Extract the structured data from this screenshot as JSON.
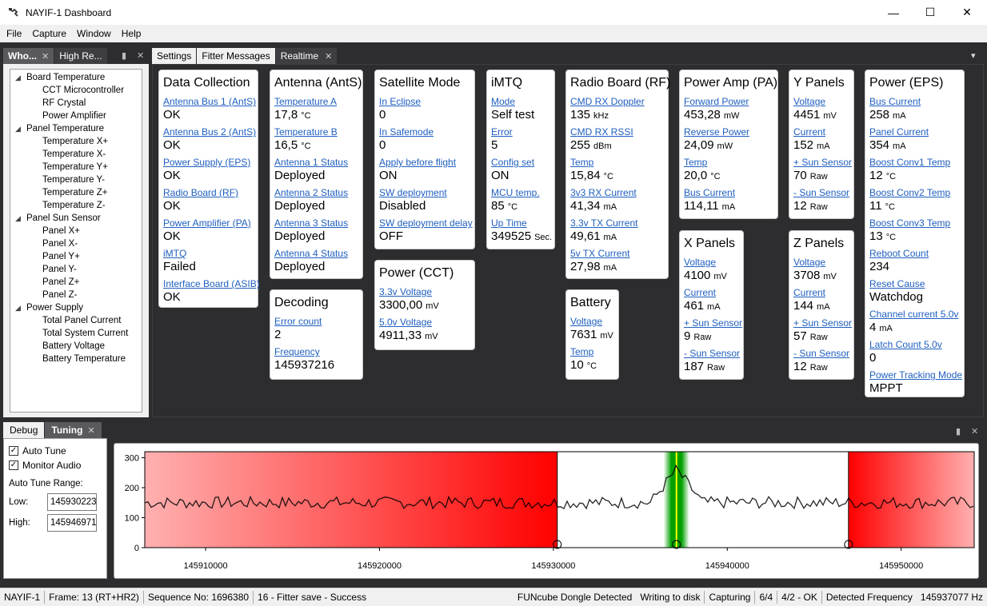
{
  "window": {
    "title": "NAYIF-1 Dashboard",
    "minimize": "—",
    "maximize": "☐",
    "close": "✕"
  },
  "menu": [
    "File",
    "Capture",
    "Window",
    "Help"
  ],
  "left_tabs": [
    {
      "label": "Who...",
      "active": true
    },
    {
      "label": "High Re...",
      "active": false
    }
  ],
  "tree": [
    {
      "label": "Board Temperature",
      "level": 0
    },
    {
      "label": "CCT Microcontroller",
      "level": 1
    },
    {
      "label": "RF Crystal",
      "level": 1
    },
    {
      "label": "Power Amplifier",
      "level": 1
    },
    {
      "label": "Panel Temperature",
      "level": 0
    },
    {
      "label": "Temperature X+",
      "level": 1
    },
    {
      "label": "Temperature X-",
      "level": 1
    },
    {
      "label": "Temperature Y+",
      "level": 1
    },
    {
      "label": "Temperature Y-",
      "level": 1
    },
    {
      "label": "Temperature Z+",
      "level": 1
    },
    {
      "label": "Temperature Z-",
      "level": 1
    },
    {
      "label": "Panel Sun Sensor",
      "level": 0
    },
    {
      "label": "Panel X+",
      "level": 1
    },
    {
      "label": "Panel X-",
      "level": 1
    },
    {
      "label": "Panel Y+",
      "level": 1
    },
    {
      "label": "Panel Y-",
      "level": 1
    },
    {
      "label": "Panel Z+",
      "level": 1
    },
    {
      "label": "Panel Z-",
      "level": 1
    },
    {
      "label": "Power Supply",
      "level": 0
    },
    {
      "label": "Total Panel Current",
      "level": 1
    },
    {
      "label": "Total System Current",
      "level": 1
    },
    {
      "label": "Battery Voltage",
      "level": 1
    },
    {
      "label": "Battery Temperature",
      "level": 1
    }
  ],
  "main_tabs": [
    {
      "label": "Settings"
    },
    {
      "label": "Fitter Messages"
    },
    {
      "label": "Realtime",
      "active": true
    }
  ],
  "cards": {
    "data_collection": {
      "title": "Data Collection",
      "items": [
        {
          "label": "Antenna Bus 1 (AntS)",
          "value": "OK",
          "unit": ""
        },
        {
          "label": "Antenna Bus 2 (AntS)",
          "value": "OK",
          "unit": ""
        },
        {
          "label": "Power Supply (EPS)",
          "value": "OK",
          "unit": ""
        },
        {
          "label": "Radio Board (RF)",
          "value": "OK",
          "unit": ""
        },
        {
          "label": "Power Amplifier (PA)",
          "value": "OK",
          "unit": ""
        },
        {
          "label": "iMTQ",
          "value": "Failed",
          "unit": ""
        },
        {
          "label": "Interface Board (ASIB)",
          "value": "OK",
          "unit": ""
        }
      ]
    },
    "antenna": {
      "title": "Antenna (AntS)",
      "items": [
        {
          "label": "Temperature A",
          "value": "17,8",
          "unit": "°C"
        },
        {
          "label": "Temperature B",
          "value": "16,5",
          "unit": "°C"
        },
        {
          "label": "Antenna 1 Status",
          "value": "Deployed",
          "unit": ""
        },
        {
          "label": "Antenna 2 Status",
          "value": "Deployed",
          "unit": ""
        },
        {
          "label": "Antenna 3 Status",
          "value": "Deployed",
          "unit": ""
        },
        {
          "label": "Antenna 4 Status",
          "value": "Deployed",
          "unit": ""
        }
      ]
    },
    "decoding": {
      "title": "Decoding",
      "items": [
        {
          "label": "Error count",
          "value": "2",
          "unit": ""
        },
        {
          "label": "Frequency",
          "value": "145937216",
          "unit": ""
        }
      ]
    },
    "satellite_mode": {
      "title": "Satellite Mode",
      "items": [
        {
          "label": "In Eclipse",
          "value": "0",
          "unit": ""
        },
        {
          "label": "In Safemode",
          "value": "0",
          "unit": ""
        },
        {
          "label": "Apply before flight",
          "value": "ON",
          "unit": ""
        },
        {
          "label": "SW deployment",
          "value": "Disabled",
          "unit": ""
        },
        {
          "label": "SW deployment delay",
          "value": "OFF",
          "unit": ""
        }
      ]
    },
    "power_cct": {
      "title": "Power (CCT)",
      "items": [
        {
          "label": "3.3v Voltage",
          "value": "3300,00",
          "unit": "mV"
        },
        {
          "label": "5.0v Voltage",
          "value": "4911,33",
          "unit": "mV"
        }
      ]
    },
    "imtq": {
      "title": "iMTQ",
      "items": [
        {
          "label": "Mode",
          "value": "Self test",
          "unit": ""
        },
        {
          "label": "Error",
          "value": "5",
          "unit": ""
        },
        {
          "label": "Config set",
          "value": "ON",
          "unit": ""
        },
        {
          "label": "MCU temp.",
          "value": "85",
          "unit": "°C"
        },
        {
          "label": "Up Time",
          "value": "349525",
          "unit": "Sec."
        }
      ]
    },
    "radio_board": {
      "title": "Radio Board (RF)",
      "items": [
        {
          "label": "CMD RX Doppler",
          "value": "135",
          "unit": "kHz"
        },
        {
          "label": "CMD RX RSSI",
          "value": "255",
          "unit": "dBm"
        },
        {
          "label": "Temp",
          "value": "15,84",
          "unit": "°C"
        },
        {
          "label": "3v3 RX Current",
          "value": "41,34",
          "unit": "mA"
        },
        {
          "label": "3.3v TX Current",
          "value": "49,61",
          "unit": "mA"
        },
        {
          "label": "5v TX Current",
          "value": "27,98",
          "unit": "mA"
        }
      ]
    },
    "battery": {
      "title": "Battery",
      "items": [
        {
          "label": "Voltage",
          "value": "7631",
          "unit": "mV"
        },
        {
          "label": "Temp",
          "value": "10",
          "unit": "°C"
        }
      ]
    },
    "power_amp": {
      "title": "Power Amp (PA)",
      "items": [
        {
          "label": "Forward Power",
          "value": "453,28",
          "unit": "mW"
        },
        {
          "label": "Reverse Power",
          "value": "24,09",
          "unit": "mW"
        },
        {
          "label": "Temp",
          "value": "20,0",
          "unit": "°C"
        },
        {
          "label": "Bus Current",
          "value": "114,11",
          "unit": "mA"
        }
      ]
    },
    "x_panels": {
      "title": "X Panels",
      "items": [
        {
          "label": "Voltage",
          "value": "4100",
          "unit": "mV"
        },
        {
          "label": "Current",
          "value": "461",
          "unit": "mA"
        },
        {
          "label": "+ Sun Sensor",
          "value": "9",
          "unit": "Raw"
        },
        {
          "label": "- Sun Sensor",
          "value": "187",
          "unit": "Raw"
        }
      ]
    },
    "y_panels": {
      "title": "Y Panels",
      "items": [
        {
          "label": "Voltage",
          "value": "4451",
          "unit": "mV"
        },
        {
          "label": "Current",
          "value": "152",
          "unit": "mA"
        },
        {
          "label": "+ Sun Sensor",
          "value": "70",
          "unit": "Raw"
        },
        {
          "label": "- Sun Sensor",
          "value": "12",
          "unit": "Raw"
        }
      ]
    },
    "z_panels": {
      "title": "Z Panels",
      "items": [
        {
          "label": "Voltage",
          "value": "3708",
          "unit": "mV"
        },
        {
          "label": "Current",
          "value": "144",
          "unit": "mA"
        },
        {
          "label": "+ Sun Sensor",
          "value": "57",
          "unit": "Raw"
        },
        {
          "label": "- Sun Sensor",
          "value": "12",
          "unit": "Raw"
        }
      ]
    },
    "power_eps": {
      "title": "Power (EPS)",
      "items": [
        {
          "label": "Bus Current",
          "value": "258",
          "unit": "mA"
        },
        {
          "label": "Panel Current",
          "value": "354",
          "unit": "mA"
        },
        {
          "label": "Boost Conv1 Temp",
          "value": "12",
          "unit": "°C"
        },
        {
          "label": "Boost Conv2 Temp",
          "value": "11",
          "unit": "°C"
        },
        {
          "label": "Boost Conv3 Temp",
          "value": "13",
          "unit": "°C"
        },
        {
          "label": "Reboot Count",
          "value": "234",
          "unit": ""
        },
        {
          "label": "Reset Cause",
          "value": "Watchdog",
          "unit": ""
        },
        {
          "label": "Channel current 5.0v",
          "value": "4",
          "unit": "mA"
        },
        {
          "label": "Latch Count 5.0v",
          "value": "0",
          "unit": ""
        },
        {
          "label": "Power Tracking Mode",
          "value": "MPPT",
          "unit": ""
        }
      ]
    }
  },
  "bottom_tabs": [
    {
      "label": "Debug"
    },
    {
      "label": "Tuning",
      "active": true
    }
  ],
  "tuning": {
    "auto_tune": {
      "label": "Auto Tune",
      "checked": true
    },
    "monitor_audio": {
      "label": "Monitor Audio",
      "checked": true
    },
    "range_label": "Auto Tune Range:",
    "low_label": "Low:",
    "low_value": "145930223",
    "high_label": "High:",
    "high_value": "145946971"
  },
  "chart_data": {
    "type": "line",
    "xlim": [
      145906500,
      145954200
    ],
    "ylim": [
      0,
      320
    ],
    "yticks": [
      0,
      100,
      200,
      300
    ],
    "xticks": [
      145910000,
      145920000,
      145930000,
      145940000,
      145950000
    ],
    "low_marker": 145930223,
    "high_marker": 145946971,
    "signal_frequency": 145937077,
    "excluded_color": "#ff0000",
    "signal_color": "#00a000",
    "grid": false
  },
  "status": {
    "satellite": "NAYIF-1",
    "frame": "Frame:  13 (RT+HR2)",
    "sequence": "Sequence No:  1696380",
    "fitter": "16 - Fitter save - Success",
    "dongle": "FUNcube Dongle Detected",
    "disk": "Writing to disk",
    "capturing": "Capturing",
    "ratio": "6/4",
    "ok": "4/2 - OK",
    "freq_label": "Detected Frequency",
    "freq_value": "145937077 Hz"
  }
}
